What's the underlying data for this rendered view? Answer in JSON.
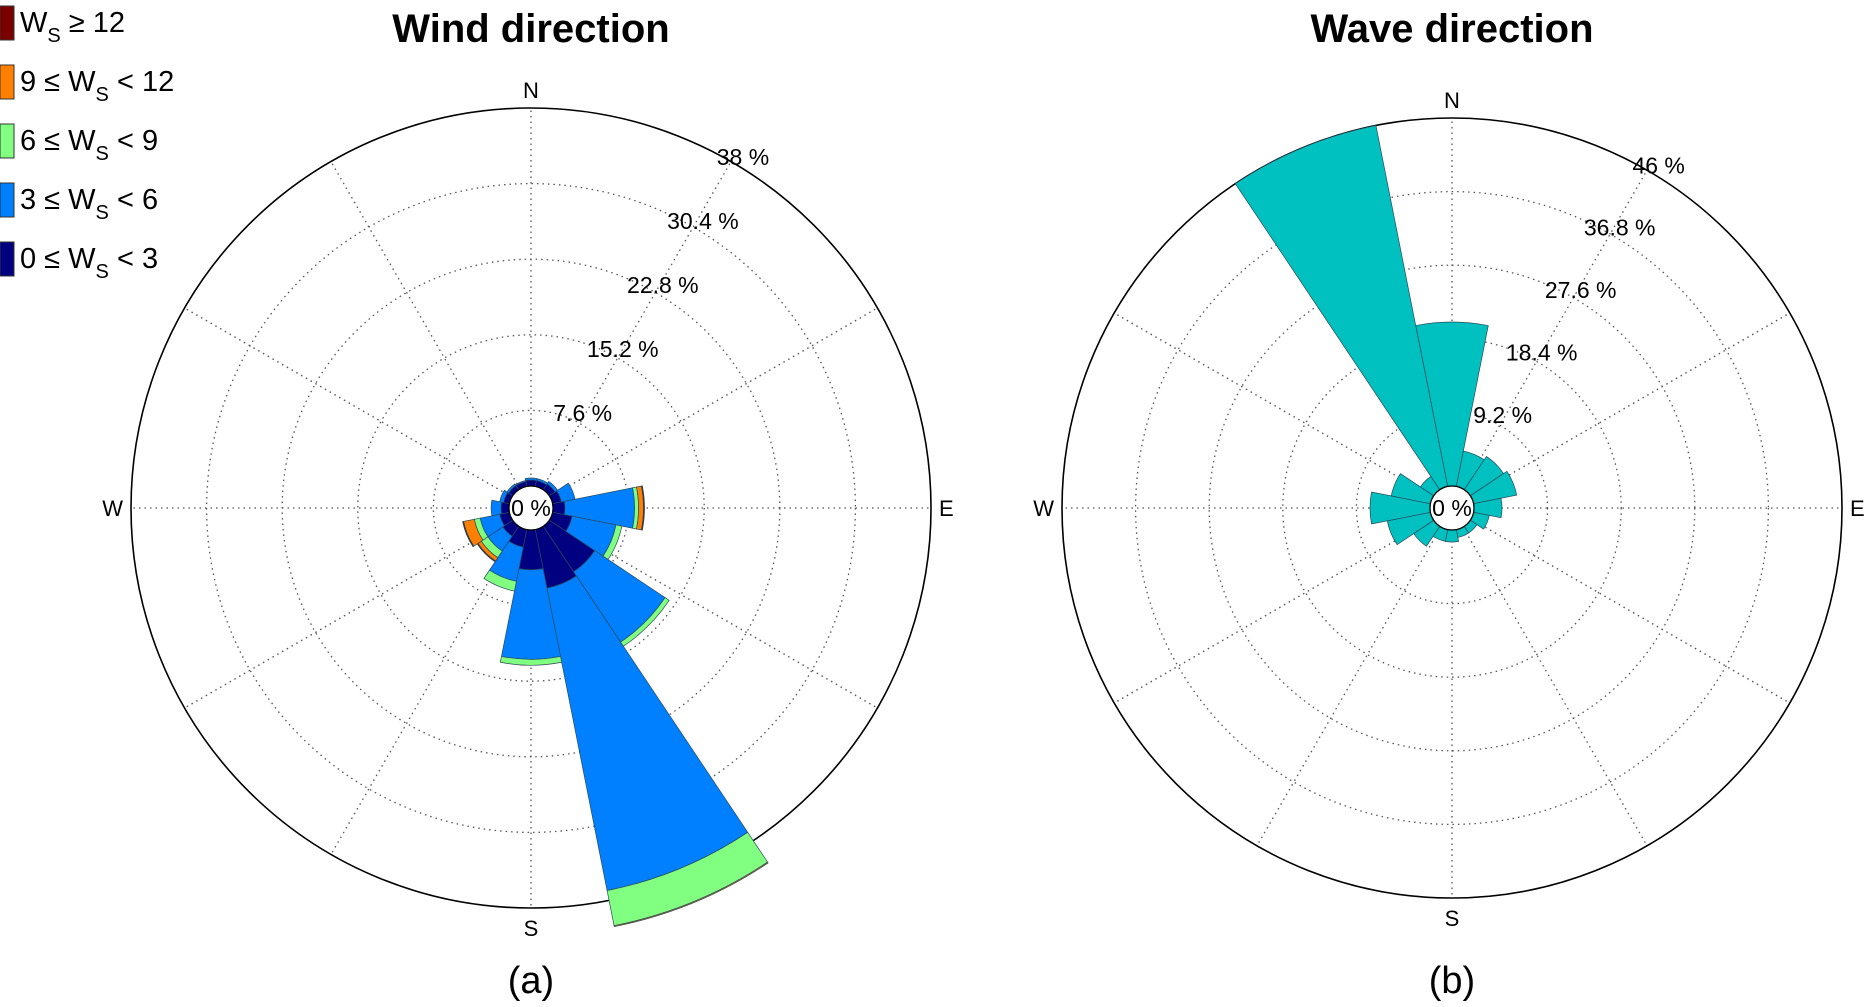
{
  "legend": {
    "title": "",
    "items": [
      {
        "prefix": "",
        "mid": "W",
        "sub": "S",
        "suffix": " ≥ 12",
        "color": "#7a0000"
      },
      {
        "prefix": "9 ≤ ",
        "mid": "W",
        "sub": "S",
        "suffix": " < 12",
        "color": "#ff8000"
      },
      {
        "prefix": "6 ≤ ",
        "mid": "W",
        "sub": "S",
        "suffix": " < 9",
        "color": "#80ff80"
      },
      {
        "prefix": "3 ≤ ",
        "mid": "W",
        "sub": "S",
        "suffix": " < 6",
        "color": "#0080ff"
      },
      {
        "prefix": "0 ≤ ",
        "mid": "W",
        "sub": "S",
        "suffix": " < 3",
        "color": "#000080"
      }
    ]
  },
  "chart_data": [
    {
      "type": "wind-rose",
      "title": "Wind direction",
      "caption": "(a)",
      "compass_labels": {
        "N": "N",
        "E": "E",
        "S": "S",
        "W": "W"
      },
      "rings": [
        7.6,
        15.2,
        22.8,
        30.4,
        38
      ],
      "ring_labels": [
        "7.6 %",
        "15.2 %",
        "22.8 %",
        "30.4 %",
        "38  %"
      ],
      "center_label": "0 %",
      "rmax": 38,
      "grid": true,
      "sector_width_deg": 22.5,
      "directions_deg": [
        0,
        22.5,
        45,
        67.5,
        90,
        112.5,
        135,
        157.5,
        180,
        202.5,
        225,
        247.5,
        270,
        292.5,
        315,
        337.5
      ],
      "speed_bins": [
        "0 ≤ WS < 3",
        "3 ≤ WS < 6",
        "6 ≤ WS < 9",
        "9 ≤ WS < 12",
        "WS ≥ 12"
      ],
      "series": [
        {
          "name": "0 ≤ WS < 3",
          "color": "#000080",
          "values": [
            0.6,
            0.6,
            0.7,
            0.9,
            1.2,
            2.0,
            5.5,
            6.0,
            4.0,
            1.8,
            1.2,
            1.0,
            0.8,
            0.6,
            0.5,
            0.5
          ]
        },
        {
          "name": "3 ≤ WS < 6",
          "color": "#0080ff",
          "values": [
            0.2,
            0.2,
            0.3,
            1.4,
            7.0,
            4.5,
            8.5,
            31.0,
            9.0,
            3.5,
            1.8,
            2.0,
            1.0,
            0.4,
            0.2,
            0.1
          ]
        },
        {
          "name": "6 ≤ WS < 9",
          "color": "#80ff80",
          "values": [
            0.0,
            0.0,
            0.0,
            0.0,
            0.4,
            0.6,
            0.5,
            3.6,
            0.6,
            1.0,
            0.8,
            0.6,
            0.0,
            0.0,
            0.0,
            0.0
          ]
        },
        {
          "name": "9 ≤ WS < 12",
          "color": "#ff8000",
          "values": [
            0.0,
            0.0,
            0.0,
            0.0,
            0.5,
            0.0,
            0.0,
            0.1,
            0.0,
            0.0,
            0.4,
            1.1,
            0.0,
            0.0,
            0.0,
            0.0
          ]
        },
        {
          "name": "WS ≥ 12",
          "color": "#7a0000",
          "values": [
            0.0,
            0.0,
            0.0,
            0.0,
            0.1,
            0.0,
            0.0,
            0.0,
            0.0,
            0.0,
            0.1,
            0.1,
            0.0,
            0.0,
            0.0,
            0.0
          ]
        }
      ]
    },
    {
      "type": "wave-rose",
      "title": "Wave direction",
      "caption": "(b)",
      "compass_labels": {
        "N": "N",
        "E": "E",
        "S": "S",
        "W": "W"
      },
      "rings": [
        9.2,
        18.4,
        27.6,
        36.8,
        46
      ],
      "ring_labels": [
        "9.2 %",
        "18.4 %",
        "27.6 %",
        "36.8 %",
        "46 %"
      ],
      "center_label": "0 %",
      "rmax": 46,
      "grid": true,
      "sector_width_deg": 22.5,
      "directions_deg": [
        0,
        22.5,
        45,
        67.5,
        90,
        112.5,
        135,
        157.5,
        180,
        202.5,
        225,
        247.5,
        270,
        292.5,
        315,
        337.5
      ],
      "series": [
        {
          "name": "",
          "color": "#00c0c0",
          "values": [
            20.5,
            4.5,
            5.0,
            5.5,
            3.5,
            2.0,
            1.0,
            1.0,
            1.5,
            1.5,
            3.0,
            5.5,
            7.5,
            5.0,
            2.0,
            46.0
          ]
        }
      ]
    }
  ]
}
